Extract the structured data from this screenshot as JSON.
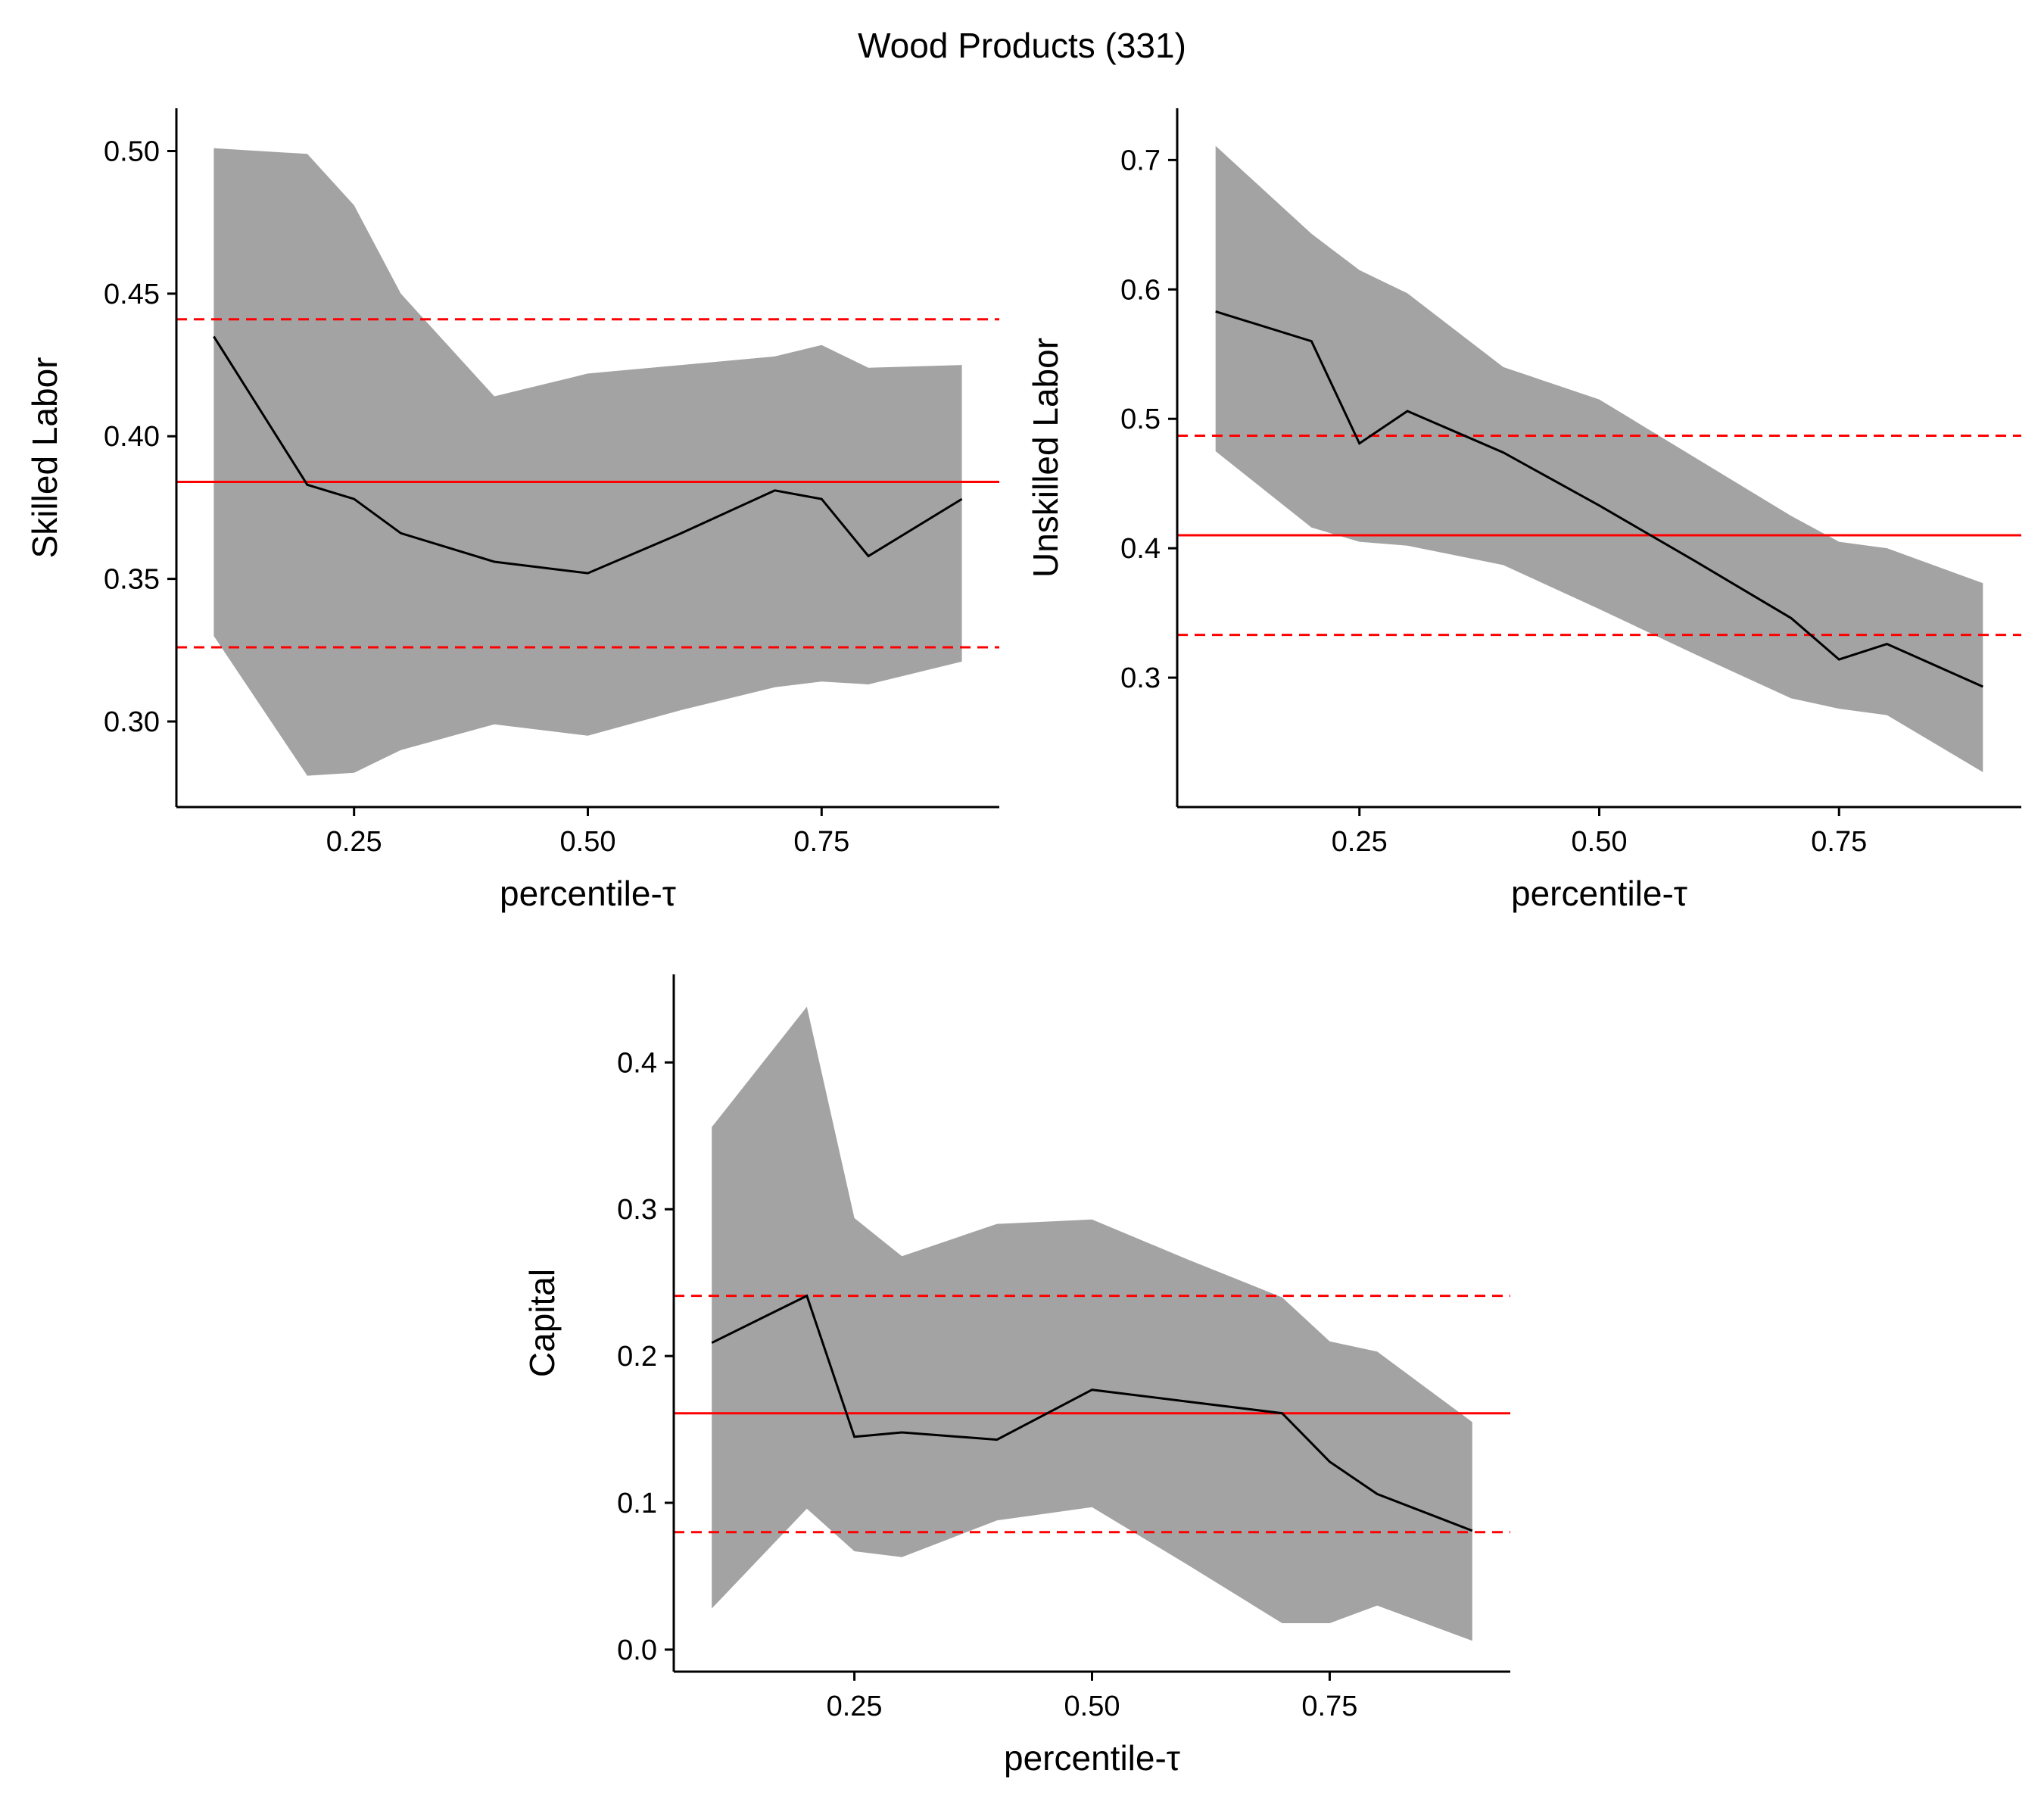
{
  "title": "Wood Products (331)",
  "colors": {
    "band": "#a3a3a3",
    "line": "#000000",
    "reference": "#ff0000"
  },
  "chart_data": [
    {
      "type": "line",
      "ylabel": "Skilled Labor",
      "xlabel": "percentile-τ",
      "xlim": [
        0.06,
        0.94
      ],
      "ylim": [
        0.27,
        0.515
      ],
      "xticks": [
        0.25,
        0.5,
        0.75
      ],
      "xtick_labels": [
        "0.25",
        "0.50",
        "0.75"
      ],
      "yticks": [
        0.3,
        0.35,
        0.4,
        0.45,
        0.5
      ],
      "ytick_labels": [
        "0.30",
        "0.35",
        "0.40",
        "0.45",
        "0.50"
      ],
      "x": [
        0.1,
        0.2,
        0.25,
        0.3,
        0.4,
        0.5,
        0.6,
        0.7,
        0.75,
        0.8,
        0.9
      ],
      "estimate": [
        0.435,
        0.383,
        0.378,
        0.366,
        0.356,
        0.352,
        0.366,
        0.381,
        0.378,
        0.358,
        0.378
      ],
      "lower": [
        0.33,
        0.281,
        0.282,
        0.29,
        0.299,
        0.295,
        0.304,
        0.312,
        0.314,
        0.313,
        0.321
      ],
      "upper": [
        0.501,
        0.499,
        0.481,
        0.45,
        0.414,
        0.422,
        0.425,
        0.428,
        0.432,
        0.424,
        0.425
      ],
      "reference_line": 0.384,
      "reference_band": [
        0.326,
        0.441
      ],
      "grid": false,
      "legend": "none"
    },
    {
      "type": "line",
      "ylabel": "Unskilled Labor",
      "xlabel": "percentile-τ",
      "xlim": [
        0.06,
        0.94
      ],
      "ylim": [
        0.2,
        0.74
      ],
      "xticks": [
        0.25,
        0.5,
        0.75
      ],
      "xtick_labels": [
        "0.25",
        "0.50",
        "0.75"
      ],
      "yticks": [
        0.3,
        0.4,
        0.5,
        0.6,
        0.7
      ],
      "ytick_labels": [
        "0.3",
        "0.4",
        "0.5",
        "0.6",
        "0.7"
      ],
      "x": [
        0.1,
        0.2,
        0.25,
        0.3,
        0.4,
        0.5,
        0.6,
        0.7,
        0.75,
        0.8,
        0.9
      ],
      "estimate": [
        0.583,
        0.56,
        0.481,
        0.506,
        0.474,
        0.433,
        0.39,
        0.346,
        0.314,
        0.326,
        0.293
      ],
      "lower": [
        0.475,
        0.416,
        0.405,
        0.402,
        0.387,
        0.353,
        0.318,
        0.284,
        0.276,
        0.271,
        0.227
      ],
      "upper": [
        0.711,
        0.643,
        0.615,
        0.597,
        0.54,
        0.515,
        0.47,
        0.425,
        0.405,
        0.4,
        0.373
      ],
      "reference_line": 0.41,
      "reference_band": [
        0.333,
        0.487
      ],
      "grid": false,
      "legend": "none"
    },
    {
      "type": "line",
      "ylabel": "Capital",
      "xlabel": "percentile-τ",
      "xlim": [
        0.06,
        0.94
      ],
      "ylim": [
        -0.015,
        0.46
      ],
      "xticks": [
        0.25,
        0.5,
        0.75
      ],
      "xtick_labels": [
        "0.25",
        "0.50",
        "0.75"
      ],
      "yticks": [
        0.0,
        0.1,
        0.2,
        0.3,
        0.4
      ],
      "ytick_labels": [
        "0.0",
        "0.1",
        "0.2",
        "0.3",
        "0.4"
      ],
      "x": [
        0.1,
        0.2,
        0.25,
        0.3,
        0.4,
        0.5,
        0.6,
        0.7,
        0.75,
        0.8,
        0.9
      ],
      "estimate": [
        0.209,
        0.241,
        0.145,
        0.148,
        0.143,
        0.177,
        0.169,
        0.161,
        0.128,
        0.106,
        0.081
      ],
      "lower": [
        0.028,
        0.096,
        0.067,
        0.063,
        0.088,
        0.097,
        0.058,
        0.018,
        0.018,
        0.03,
        0.006
      ],
      "upper": [
        0.356,
        0.438,
        0.294,
        0.268,
        0.29,
        0.293,
        0.266,
        0.24,
        0.21,
        0.203,
        0.155
      ],
      "reference_line": 0.161,
      "reference_band": [
        0.08,
        0.241
      ],
      "grid": false,
      "legend": "none"
    }
  ]
}
